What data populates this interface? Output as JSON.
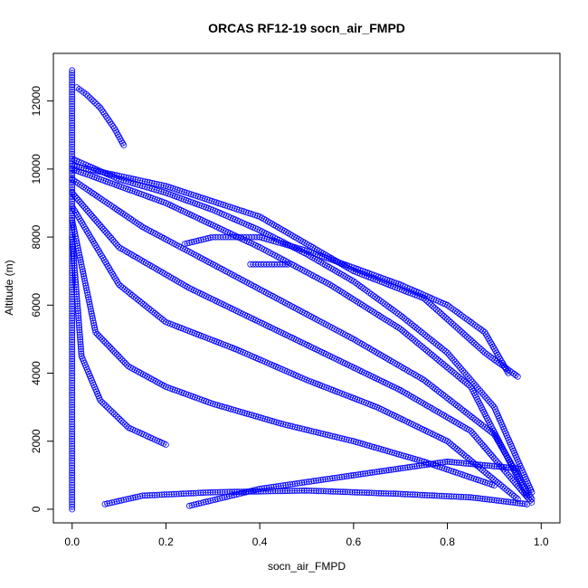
{
  "chart_data": {
    "type": "scatter",
    "title": "ORCAS RF12-19 socn_air_FMPD",
    "xlabel": "socn_air_FMPD",
    "ylabel": "Altitude (m)",
    "xlim": [
      -0.04,
      1.04
    ],
    "ylim": [
      -400,
      13400
    ],
    "x_ticks": [
      0.0,
      0.2,
      0.4,
      0.6,
      0.8,
      1.0
    ],
    "x_tick_labels": [
      "0.0",
      "0.2",
      "0.4",
      "0.6",
      "0.8",
      "1.0"
    ],
    "y_ticks": [
      0,
      2000,
      4000,
      6000,
      8000,
      10000,
      12000
    ],
    "y_tick_labels": [
      "0",
      "2000",
      "4000",
      "6000",
      "8000",
      "10000",
      "12000"
    ],
    "grid": false,
    "marker": "open-circle",
    "color": "#0000ff",
    "series": [
      {
        "x": [
          0.0,
          0.0,
          0.0,
          0.0,
          0.0,
          0.0
        ],
        "y": [
          0,
          2000,
          4000,
          8000,
          11000,
          12900
        ]
      },
      {
        "x": [
          0.01,
          0.03,
          0.06,
          0.09,
          0.11
        ],
        "y": [
          12400,
          12200,
          11800,
          11200,
          10700
        ]
      },
      {
        "x": [
          0.0,
          0.1,
          0.2,
          0.3,
          0.4,
          0.5,
          0.6,
          0.7,
          0.8,
          0.9,
          0.98
        ],
        "y": [
          10300,
          9700,
          9300,
          8800,
          8200,
          7500,
          6700,
          5700,
          4600,
          3000,
          500
        ]
      },
      {
        "x": [
          0.0,
          0.2,
          0.4,
          0.55,
          0.7,
          0.85,
          0.97
        ],
        "y": [
          10000,
          9000,
          7700,
          6600,
          5300,
          3600,
          400
        ]
      },
      {
        "x": [
          0.0,
          0.15,
          0.3,
          0.45,
          0.6,
          0.75,
          0.9,
          0.98
        ],
        "y": [
          9700,
          8300,
          7200,
          6100,
          5000,
          3800,
          2200,
          300
        ]
      },
      {
        "x": [
          0.0,
          0.1,
          0.25,
          0.4,
          0.55,
          0.7,
          0.85,
          0.98
        ],
        "y": [
          9300,
          7700,
          6500,
          5500,
          4500,
          3500,
          2300,
          200
        ]
      },
      {
        "x": [
          0.0,
          0.1,
          0.2,
          0.35,
          0.5,
          0.65,
          0.8,
          0.95
        ],
        "y": [
          8900,
          6600,
          5500,
          4700,
          3800,
          3000,
          2000,
          300
        ]
      },
      {
        "x": [
          0.0,
          0.05,
          0.12,
          0.2,
          0.3,
          0.45,
          0.6,
          0.75,
          0.9
        ],
        "y": [
          8500,
          5200,
          4200,
          3600,
          3100,
          2500,
          2000,
          1400,
          700
        ]
      },
      {
        "x": [
          0.0,
          0.02,
          0.06,
          0.12,
          0.2
        ],
        "y": [
          8000,
          4500,
          3200,
          2400,
          1900
        ]
      },
      {
        "x": [
          0.0,
          0.2,
          0.4,
          0.6,
          0.75,
          0.88,
          0.95
        ],
        "y": [
          10100,
          9500,
          8600,
          7000,
          6200,
          4600,
          3900
        ]
      },
      {
        "x": [
          0.4,
          0.5,
          0.6,
          0.7,
          0.8,
          0.88,
          0.93
        ],
        "y": [
          8000,
          7600,
          7100,
          6600,
          6000,
          5200,
          4000
        ]
      },
      {
        "x": [
          0.07,
          0.15,
          0.3,
          0.5,
          0.7,
          0.85,
          0.97
        ],
        "y": [
          150,
          400,
          500,
          550,
          450,
          350,
          150
        ]
      },
      {
        "x": [
          0.25,
          0.4,
          0.6,
          0.8,
          0.95
        ],
        "y": [
          100,
          600,
          1000,
          1400,
          1200
        ]
      },
      {
        "x": [
          0.24,
          0.3,
          0.36,
          0.4
        ],
        "y": [
          7800,
          8000,
          8000,
          8000
        ]
      },
      {
        "x": [
          0.38,
          0.42,
          0.46
        ],
        "y": [
          7200,
          7200,
          7200
        ]
      }
    ]
  }
}
